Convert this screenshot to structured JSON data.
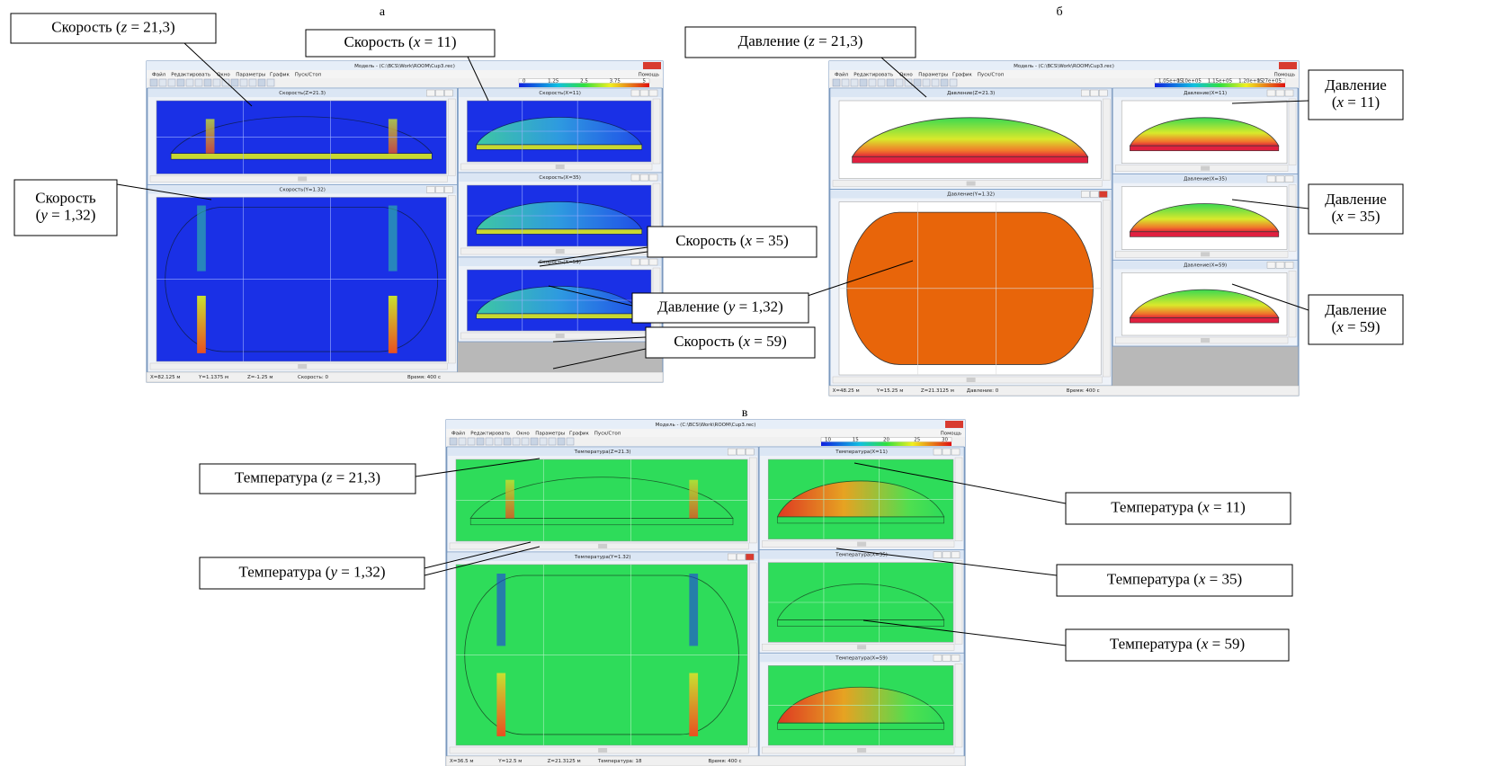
{
  "screens": [
    {
      "letter": "а",
      "title": "Модель - (C:\\BCS\\Work\\ROOM\\Cup3.rec)",
      "menu": [
        "Файл",
        "Редактировать",
        "Окно",
        "Параметры",
        "График",
        "Пуск/Стоп"
      ],
      "help": "Помощь",
      "scale_ticks": [
        0,
        1.25,
        2.5,
        3.75,
        5
      ],
      "windows": [
        "Скорость(Z=21.3)",
        "Скорость(X=11)",
        "Скорость(Y=1.32)",
        "Скорость(X=35)",
        "Скорость(X=59)"
      ],
      "status": [
        "X=82.125 м",
        "Y=1.1375 м",
        "Z=-1.25 м",
        "Скорость: 0",
        "Время: 400 с"
      ]
    },
    {
      "letter": "б",
      "title": "Модель - (C:\\BCS\\Work\\ROOM\\Cup3.rec)",
      "menu": [
        "Файл",
        "Редактировать",
        "Окно",
        "Параметры",
        "График",
        "Пуск/Стоп"
      ],
      "help": "Помощь",
      "scale_ticks": [
        "1.05e+05",
        "1.10e+05",
        "1.15e+05",
        "1.20e+05",
        "1.27e+05"
      ],
      "windows": [
        "Давление(Z=21.3)",
        "Давление(X=11)",
        "Давление(Y=1.32)",
        "Давление(X=35)",
        "Давление(X=59)"
      ],
      "status": [
        "X=48.25 м",
        "Y=15.25 м",
        "Z=21.3125 м",
        "Давление: 0",
        "Время: 400 с"
      ]
    },
    {
      "letter": "в",
      "title": "Модель - (C:\\BCS\\Work\\ROOM\\Cup3.rec)",
      "menu": [
        "Файл",
        "Редактировать",
        "Окно",
        "Параметры",
        "График",
        "Пуск/Стоп"
      ],
      "help": "Помощь",
      "scale_ticks": [
        10,
        15,
        20,
        25,
        30
      ],
      "windows": [
        "Температура(Z=21.3)",
        "Температура(X=11)",
        "Температура(Y=1.32)",
        "Температура(X=35)",
        "Температура(X=59)"
      ],
      "status": [
        "X=36.5 м",
        "Y=12.5 м",
        "Z=21.3125 м",
        "Температура: 18",
        "Время: 400 с"
      ]
    }
  ],
  "callouts": [
    {
      "lines": [
        [
          "Скорость (",
          "z",
          " = 21,3)"
        ]
      ]
    },
    {
      "lines": [
        [
          "Скорость (",
          "x",
          " = 11)"
        ]
      ]
    },
    {
      "lines": [
        [
          "Скорость"
        ],
        [
          "(",
          "y",
          " = 1,32)"
        ]
      ]
    },
    {
      "lines": [
        [
          "Скорость (",
          "x",
          " = 35)"
        ]
      ]
    },
    {
      "lines": [
        [
          "Давление (",
          "y",
          " = 1,32)"
        ]
      ]
    },
    {
      "lines": [
        [
          "Скорость (",
          "x",
          " = 59)"
        ]
      ]
    },
    {
      "lines": [
        [
          "Давление (",
          "z",
          " = 21,3)"
        ]
      ]
    },
    {
      "lines": [
        [
          "Давление"
        ],
        [
          "(",
          "x",
          " = 11)"
        ]
      ]
    },
    {
      "lines": [
        [
          "Давление"
        ],
        [
          "(",
          "x",
          " = 35)"
        ]
      ]
    },
    {
      "lines": [
        [
          "Давление"
        ],
        [
          "(",
          "x",
          " = 59)"
        ]
      ]
    },
    {
      "lines": [
        [
          "Температура (",
          "z",
          " = 21,3)"
        ]
      ]
    },
    {
      "lines": [
        [
          "Температура (",
          "y",
          " = 1,32)"
        ]
      ]
    },
    {
      "lines": [
        [
          "Температура (",
          "x",
          " = 11)"
        ]
      ]
    },
    {
      "lines": [
        [
          "Температура (",
          "x",
          " = 35)"
        ]
      ]
    },
    {
      "lines": [
        [
          "Температура (",
          "x",
          " = 59)"
        ]
      ]
    }
  ]
}
